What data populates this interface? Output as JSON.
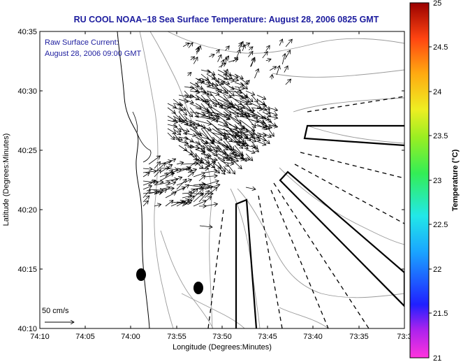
{
  "title": "RU COOL  NOAA–18  Sea Surface Temperature:  August 28, 2006 0825 GMT",
  "annotation": {
    "line1": "Raw Surface Current:",
    "line2": "August 28, 2006 09:00 GMT"
  },
  "axes": {
    "xlabel": "Longitude (Degrees:Minutes)",
    "ylabel": "Latitude (Degrees:Minutes)",
    "xticks": [
      "74:10",
      "74:05",
      "74:00",
      "73:55",
      "73:50",
      "73:45",
      "73:40",
      "73:35",
      "73:3"
    ],
    "yticks": [
      "40:35",
      "40:30",
      "40:25",
      "40:20",
      "40:15",
      "40:10"
    ]
  },
  "scale": {
    "label": "50 cm/s"
  },
  "colorbar": {
    "label": "Temperature (°C)",
    "ticks": [
      "25",
      "24.5",
      "24",
      "23.5",
      "23",
      "22.5",
      "22",
      "21.5",
      "21"
    ]
  },
  "colors": {
    "title": "#1c1c9e",
    "land": "#ffffff",
    "contour": "#9a9a9a"
  }
}
